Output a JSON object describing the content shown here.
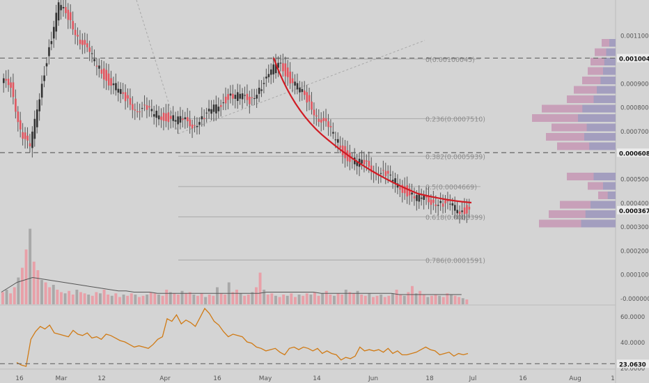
{
  "chart_data": {
    "type": "candlestick",
    "price_axis": {
      "ticks": [
        "0.0011000",
        "0.0009000",
        "0.0008000",
        "0.0007000",
        "0.0005000",
        "0.0004000",
        "0.0003000",
        "0.0002000",
        "0.0001000",
        "-0.0000000"
      ],
      "tick_values": [
        0.0011,
        0.0009,
        0.0008,
        0.0007,
        0.0005,
        0.0004,
        0.0003,
        0.0002,
        0.0001,
        0.0
      ],
      "highlight_labels": [
        {
          "text": "0.0010045",
          "value": 0.0010045
        },
        {
          "text": "0.0006086",
          "value": 0.0006086
        },
        {
          "text": "0.0003678",
          "value": 0.0003678
        }
      ],
      "range": [
        -5e-06,
        0.00115
      ]
    },
    "time_axis": {
      "labels": [
        "16",
        "Mar",
        "12",
        "Apr",
        "16",
        "May",
        "14",
        "Jun",
        "18",
        "Jul",
        "16",
        "Aug",
        "1"
      ]
    },
    "fibonacci": [
      {
        "label": "0.00100045",
        "value": 0.00100045,
        "prefix": "0"
      },
      {
        "label": "0.236(0.0007510)",
        "value": 0.000751
      },
      {
        "label": "0.382(0.0005939)",
        "value": 0.0005939
      },
      {
        "label": "0.5(0.0004669)",
        "value": 0.0004669
      },
      {
        "label": "0.618(0.0003399)",
        "value": 0.0003399
      },
      {
        "label": "0.786(0.0001591)",
        "value": 0.0001591
      }
    ],
    "horizontal_lines": [
      0.0010045,
      0.0006086
    ],
    "price_series": [
      0.0009,
      0.0007,
      0.00062,
      0.00085,
      0.00105,
      0.00122,
      0.00118,
      0.0011,
      0.00103,
      0.00098,
      0.00092,
      0.00088,
      0.00083,
      0.0008,
      0.00079,
      0.00077,
      0.00076,
      0.00075,
      0.00074,
      0.00073,
      0.00075,
      0.00078,
      0.00082,
      0.00085,
      0.00084,
      0.00083,
      0.00088,
      0.00092,
      0.001,
      0.00093,
      0.00088,
      0.00083,
      0.00077,
      0.00072,
      0.00067,
      0.0006,
      0.00057,
      0.00056,
      0.00054,
      0.00052,
      0.00049,
      0.00046,
      0.00043,
      0.00041,
      0.00041,
      0.0004,
      0.00038,
      0.00037,
      0.00037
    ],
    "rsi": {
      "ticks": [
        "60.0000",
        "40.0000",
        "20.0000"
      ],
      "tick_values": [
        60,
        40,
        20
      ],
      "level_label": "23.0630",
      "level": 23.063,
      "range": [
        17,
        69
      ],
      "values": [
        24,
        22,
        21,
        42,
        48,
        52,
        50,
        53,
        47,
        46,
        45,
        44,
        49,
        46,
        45,
        47,
        43,
        44,
        42,
        46,
        45,
        43,
        41,
        40,
        38,
        36,
        37,
        36,
        35,
        38,
        42,
        44,
        58,
        56,
        61,
        54,
        57,
        55,
        52,
        59,
        66,
        62,
        56,
        53,
        48,
        44,
        46,
        45,
        44,
        40,
        39,
        36,
        35,
        33,
        34,
        35,
        32,
        30,
        35,
        36,
        34,
        36,
        35,
        33,
        35,
        31,
        33,
        31,
        30,
        26,
        28,
        27,
        29,
        36,
        33,
        34,
        33,
        34,
        32,
        35,
        31,
        33,
        30,
        30,
        31,
        32,
        34,
        36,
        34,
        33,
        30,
        31,
        32,
        29,
        31,
        30,
        31
      ]
    },
    "volume": {
      "values": [
        10,
        12,
        9,
        14,
        22,
        30,
        45,
        62,
        35,
        28,
        20,
        18,
        14,
        16,
        12,
        10,
        9,
        11,
        8,
        12,
        10,
        9,
        8,
        7,
        10,
        9,
        12,
        8,
        7,
        9,
        6,
        8,
        7,
        9,
        8,
        6,
        7,
        8,
        10,
        9,
        8,
        7,
        12,
        10,
        9,
        8,
        11,
        9,
        10,
        8,
        7,
        9,
        6,
        8,
        7,
        14,
        9,
        8,
        18,
        10,
        12,
        9,
        7,
        8,
        10,
        14,
        26,
        12,
        8,
        9,
        7,
        6,
        8,
        7,
        9,
        6,
        8,
        7,
        9,
        8,
        10,
        7,
        9,
        11,
        8,
        7,
        9,
        8,
        12,
        10,
        9,
        11,
        8,
        7,
        9,
        6,
        7,
        8,
        6,
        7,
        9,
        12,
        8,
        7,
        10,
        15,
        9,
        11,
        8,
        6,
        7,
        8,
        7,
        6,
        9,
        8,
        7,
        6,
        5,
        4
      ],
      "ma": [
        10,
        14,
        18,
        20,
        22,
        21,
        20,
        19,
        18,
        17,
        16,
        15,
        14,
        13,
        12,
        11,
        11,
        10,
        10,
        10,
        9,
        9,
        9,
        9,
        9,
        9,
        9,
        9,
        9,
        9,
        9,
        9,
        9,
        9,
        10,
        10,
        10,
        10,
        10,
        10,
        10,
        9,
        9,
        9,
        9,
        9,
        9,
        9,
        9,
        9,
        9,
        8,
        8,
        8,
        8,
        8,
        8,
        8,
        8,
        8
      ]
    },
    "volume_profile_levels": 18
  }
}
